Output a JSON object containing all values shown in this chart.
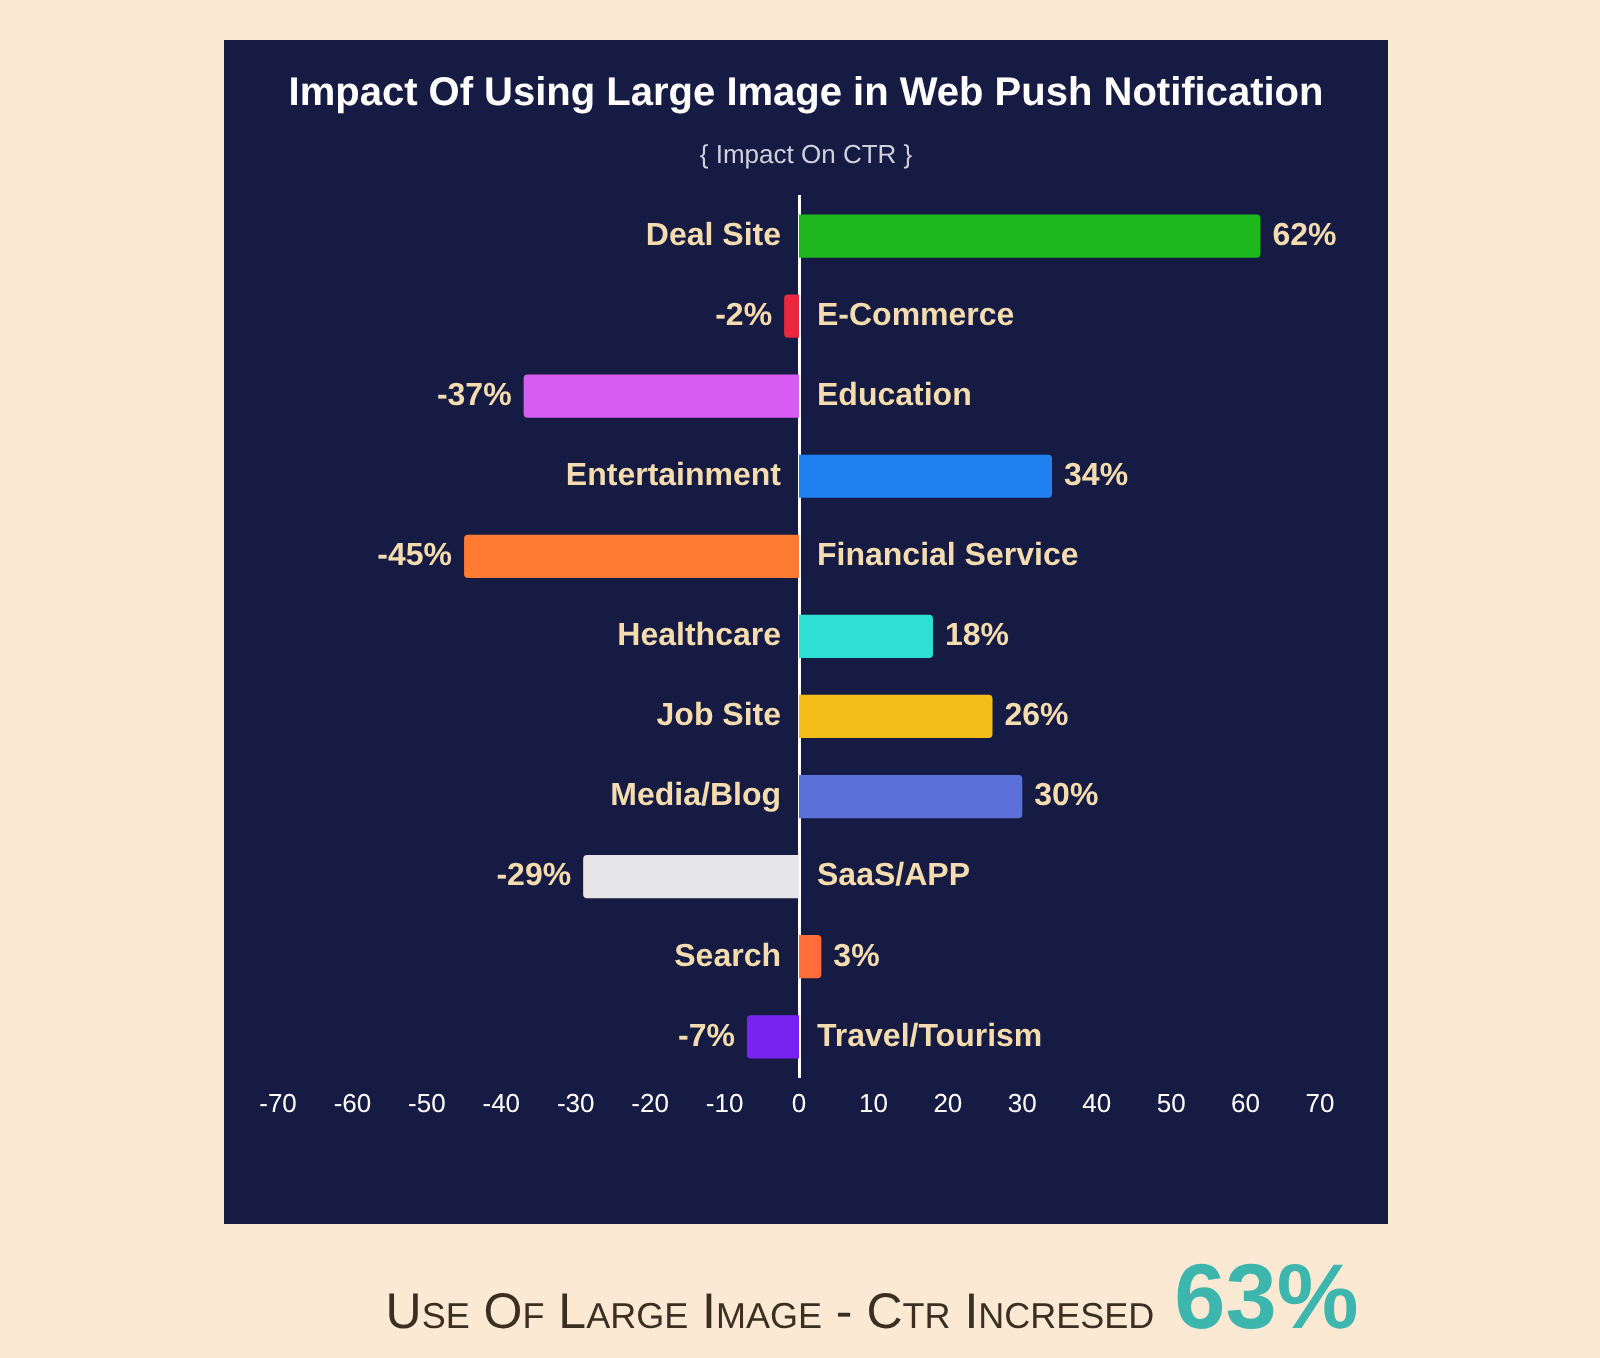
{
  "chart_data": {
    "type": "bar",
    "orientation": "horizontal",
    "title": "Impact Of Using Large Image in Web Push Notification",
    "subtitle": "{ Impact On CTR }",
    "categories": [
      "Deal Site",
      "E-Commerce",
      "Education",
      "Entertainment",
      "Financial Service",
      "Healthcare",
      "Job Site",
      "Media/Blog",
      "SaaS/APP",
      "Search",
      "Travel/Tourism"
    ],
    "values": [
      62,
      -2,
      -37,
      34,
      -45,
      18,
      26,
      30,
      -29,
      3,
      -7
    ],
    "colors": [
      "#1eb81e",
      "#e8283f",
      "#d65cf2",
      "#1f80f0",
      "#ff7a33",
      "#2fe0d4",
      "#f5bd1a",
      "#5b70d8",
      "#e6e6e8",
      "#ff6d3a",
      "#7a22f0"
    ],
    "value_labels": [
      "62%",
      "-2%",
      "-37%",
      "34%",
      "-45%",
      "18%",
      "26%",
      "30%",
      "-29%",
      "3%",
      "-7%"
    ],
    "xlim": [
      -70,
      70
    ],
    "xticks": [
      -70,
      -60,
      -50,
      -40,
      -30,
      -20,
      -10,
      0,
      10,
      20,
      30,
      40,
      50,
      60,
      70
    ],
    "grid": false,
    "legend": false,
    "annotations": [
      "Use Of Large Image - Ctr Incresed",
      "63%"
    ]
  }
}
